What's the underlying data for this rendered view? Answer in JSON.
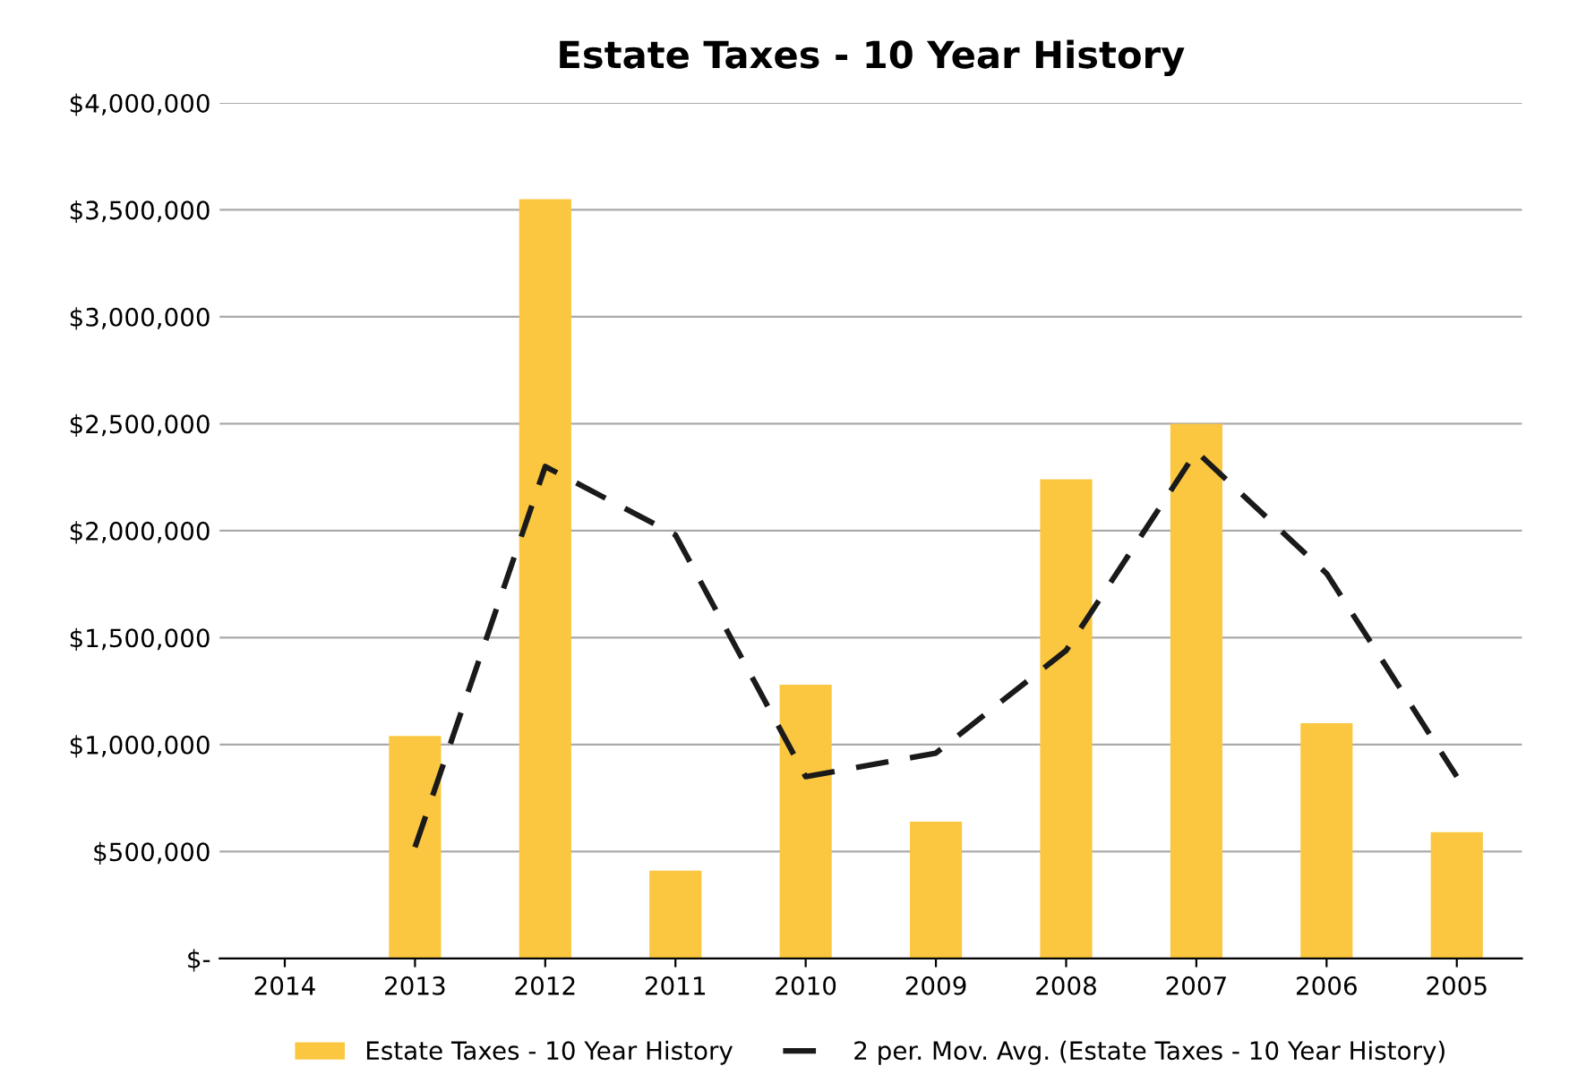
{
  "chart_data": {
    "type": "bar",
    "title": "Estate Taxes - 10 Year History",
    "categories": [
      "2014",
      "2013",
      "2012",
      "2011",
      "2010",
      "2009",
      "2008",
      "2007",
      "2006",
      "2005"
    ],
    "series": [
      {
        "name": "Estate Taxes - 10 Year History",
        "color": "#fbc740",
        "values": [
          0,
          1040000,
          3550000,
          410000,
          1280000,
          640000,
          2240000,
          2500000,
          1100000,
          590000
        ]
      },
      {
        "name": "2 per. Mov. Avg. (Estate Taxes - 10 Year History)",
        "type": "line",
        "color": "#1a1a1a",
        "line_style": "dashed",
        "values": [
          null,
          520000,
          2300000,
          1980000,
          850000,
          960000,
          1440000,
          2370000,
          1800000,
          850000
        ]
      }
    ],
    "ylim": [
      0,
      4000000
    ],
    "yticks": [
      {
        "value": 0,
        "label": "$-"
      },
      {
        "value": 500000,
        "label": "$500,000"
      },
      {
        "value": 1000000,
        "label": "$1,000,000"
      },
      {
        "value": 1500000,
        "label": "$1,500,000"
      },
      {
        "value": 2000000,
        "label": "$2,000,000"
      },
      {
        "value": 2500000,
        "label": "$2,500,000"
      },
      {
        "value": 3000000,
        "label": "$3,000,000"
      },
      {
        "value": 3500000,
        "label": "$3,500,000"
      },
      {
        "value": 4000000,
        "label": "$4,000,000"
      }
    ],
    "grid": "y",
    "legend": "bottom"
  }
}
